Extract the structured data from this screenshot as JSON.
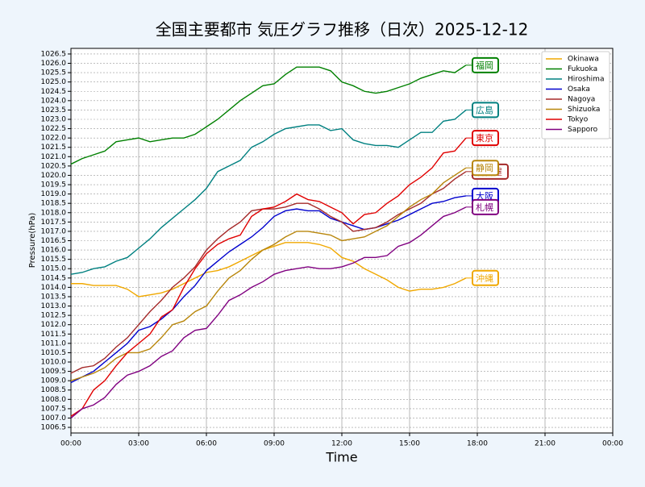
{
  "chart_data": {
    "type": "line",
    "title": "全国主要都市 気圧グラフ推移（日次）2025-12-12",
    "x_label": "Time",
    "y_label": "Pressure(hPa)",
    "xlim": [
      0,
      24
    ],
    "ylim": [
      1006.2,
      1026.8
    ],
    "xticks": [
      {
        "value": 0,
        "label": "00:00"
      },
      {
        "value": 3,
        "label": "03:00"
      },
      {
        "value": 6,
        "label": "06:00"
      },
      {
        "value": 9,
        "label": "09:00"
      },
      {
        "value": 12,
        "label": "12:00"
      },
      {
        "value": 15,
        "label": "15:00"
      },
      {
        "value": 18,
        "label": "18:00"
      },
      {
        "value": 21,
        "label": "21:00"
      },
      {
        "value": 24,
        "label": "00:00"
      }
    ],
    "yticks": [
      1006.5,
      {
        "value": 1007,
        "label": "1007.0"
      },
      1007.5,
      {
        "value": 1008,
        "label": "1008.0"
      },
      1008.5,
      {
        "value": 1009,
        "label": "1009.0"
      },
      1009.5,
      {
        "value": 1010,
        "label": "1010.0"
      },
      1010.5,
      {
        "value": 1011,
        "label": "1011.0"
      },
      1011.5,
      {
        "value": 1012,
        "label": "1012.0"
      },
      1012.5,
      {
        "value": 1013,
        "label": "1013.0"
      },
      1013.5,
      {
        "value": 1014,
        "label": "1014.0"
      },
      1014.5,
      {
        "value": 1015,
        "label": "1015.0"
      },
      1015.5,
      {
        "value": 1016,
        "label": "1016.0"
      },
      1016.5,
      {
        "value": 1017,
        "label": "1017.0"
      },
      1017.5,
      {
        "value": 1018,
        "label": "1018.0"
      },
      1018.5,
      {
        "value": 1019,
        "label": "1019.0"
      },
      1019.5,
      {
        "value": 1020,
        "label": "1020.0"
      },
      1020.5,
      {
        "value": 1021,
        "label": "1021.0"
      },
      1021.5,
      {
        "value": 1022,
        "label": "1022.0"
      },
      1022.5,
      {
        "value": 1023,
        "label": "1023.0"
      },
      1023.5,
      {
        "value": 1024,
        "label": "1024.0"
      },
      1024.5,
      {
        "value": 1025,
        "label": "1025.0"
      },
      1025.5,
      {
        "value": 1026,
        "label": "1026.0"
      },
      1026.5
    ],
    "grid": true,
    "legend": "upper right",
    "x": [
      0,
      0.5,
      1,
      1.5,
      2,
      2.5,
      3,
      3.5,
      4,
      4.5,
      5,
      5.5,
      6,
      6.5,
      7,
      7.5,
      8,
      8.5,
      9,
      9.5,
      10,
      10.5,
      11,
      11.5,
      12,
      12.5,
      13,
      13.5,
      14,
      14.5,
      15,
      15.5,
      16,
      16.5,
      17,
      17.5
    ],
    "series": [
      {
        "name": "Okinawa",
        "annotation": "沖縄",
        "color": "#f0a800",
        "values": [
          1014.2,
          1014.2,
          1014.1,
          1014.1,
          1014.1,
          1013.9,
          1013.5,
          1013.6,
          1013.7,
          1013.9,
          1014.2,
          1014.5,
          1014.8,
          1014.9,
          1015.1,
          1015.4,
          1015.7,
          1016.0,
          1016.2,
          1016.4,
          1016.4,
          1016.4,
          1016.3,
          1016.1,
          1015.6,
          1015.4,
          1015.0,
          1014.7,
          1014.4,
          1014.0,
          1013.8,
          1013.9,
          1013.9,
          1014.0,
          1014.2,
          1014.5
        ]
      },
      {
        "name": "Fukuoka",
        "annotation": "福岡",
        "color": "#008000",
        "values": [
          1020.6,
          1020.9,
          1021.1,
          1021.3,
          1021.8,
          1021.9,
          1022.0,
          1021.8,
          1021.9,
          1022.0,
          1022.0,
          1022.2,
          1022.6,
          1023.0,
          1023.5,
          1024.0,
          1024.4,
          1024.8,
          1024.9,
          1025.4,
          1025.8,
          1025.8,
          1025.8,
          1025.6,
          1025.0,
          1024.8,
          1024.5,
          1024.4,
          1024.5,
          1024.7,
          1024.9,
          1025.2,
          1025.4,
          1025.6,
          1025.5,
          1025.9
        ]
      },
      {
        "name": "Hiroshima",
        "annotation": "広島",
        "color": "#008080",
        "values": [
          1014.7,
          1014.8,
          1015.0,
          1015.1,
          1015.4,
          1015.6,
          1016.1,
          1016.6,
          1017.2,
          1017.7,
          1018.2,
          1018.7,
          1019.3,
          1020.2,
          1020.5,
          1020.8,
          1021.5,
          1021.8,
          1022.2,
          1022.5,
          1022.6,
          1022.7,
          1022.7,
          1022.4,
          1022.5,
          1021.9,
          1021.7,
          1021.6,
          1021.6,
          1021.5,
          1021.9,
          1022.3,
          1022.3,
          1022.9,
          1023.0,
          1023.5
        ]
      },
      {
        "name": "Osaka",
        "annotation": "大阪",
        "color": "#0000cd",
        "values": [
          1008.9,
          1009.2,
          1009.5,
          1010.0,
          1010.5,
          1011.0,
          1011.7,
          1011.9,
          1012.3,
          1012.8,
          1013.5,
          1014.1,
          1014.9,
          1015.4,
          1015.9,
          1016.3,
          1016.7,
          1017.2,
          1017.8,
          1018.1,
          1018.2,
          1018.1,
          1018.1,
          1017.7,
          1017.5,
          1017.3,
          1017.1,
          1017.2,
          1017.4,
          1017.6,
          1017.9,
          1018.2,
          1018.5,
          1018.6,
          1018.8,
          1018.9
        ]
      },
      {
        "name": "Nagoya",
        "annotation": "名古屋",
        "color": "#a52a2a",
        "values": [
          1009.4,
          1009.7,
          1009.8,
          1010.2,
          1010.8,
          1011.3,
          1012.0,
          1012.7,
          1013.3,
          1014.0,
          1014.5,
          1015.1,
          1016.0,
          1016.6,
          1017.1,
          1017.5,
          1018.1,
          1018.2,
          1018.2,
          1018.3,
          1018.5,
          1018.5,
          1018.2,
          1017.8,
          1017.5,
          1017.0,
          1017.1,
          1017.2,
          1017.5,
          1017.9,
          1018.2,
          1018.5,
          1019.0,
          1019.3,
          1019.8,
          1020.2
        ]
      },
      {
        "name": "Shizuoka",
        "annotation": "静岡",
        "color": "#b8860b",
        "values": [
          1009.0,
          1009.2,
          1009.4,
          1009.7,
          1010.2,
          1010.5,
          1010.5,
          1010.7,
          1011.3,
          1012.0,
          1012.2,
          1012.7,
          1013.0,
          1013.8,
          1014.5,
          1014.9,
          1015.5,
          1016.0,
          1016.3,
          1016.7,
          1017.0,
          1017.0,
          1016.9,
          1016.8,
          1016.5,
          1016.6,
          1016.7,
          1017.0,
          1017.3,
          1017.8,
          1018.3,
          1018.7,
          1019.0,
          1019.6,
          1020.0,
          1020.4
        ]
      },
      {
        "name": "Tokyo",
        "annotation": "東京",
        "color": "#e00000",
        "values": [
          1007.1,
          1007.5,
          1008.5,
          1009.0,
          1009.8,
          1010.5,
          1011.0,
          1011.5,
          1012.4,
          1012.8,
          1014.0,
          1015.0,
          1015.8,
          1016.3,
          1016.6,
          1016.8,
          1017.8,
          1018.2,
          1018.3,
          1018.6,
          1019.0,
          1018.7,
          1018.6,
          1018.3,
          1018.0,
          1017.4,
          1017.9,
          1018.0,
          1018.5,
          1018.9,
          1019.5,
          1019.9,
          1020.4,
          1021.2,
          1021.3,
          1022.0
        ]
      },
      {
        "name": "Sapporo",
        "annotation": "札幌",
        "color": "#800080",
        "values": [
          1007.0,
          1007.5,
          1007.7,
          1008.1,
          1008.8,
          1009.3,
          1009.5,
          1009.8,
          1010.3,
          1010.6,
          1011.3,
          1011.7,
          1011.8,
          1012.5,
          1013.3,
          1013.6,
          1014.0,
          1014.3,
          1014.7,
          1014.9,
          1015.0,
          1015.1,
          1015.0,
          1015.0,
          1015.1,
          1015.3,
          1015.6,
          1015.6,
          1015.7,
          1016.2,
          1016.4,
          1016.8,
          1017.3,
          1017.8,
          1018.0,
          1018.3
        ]
      }
    ]
  }
}
